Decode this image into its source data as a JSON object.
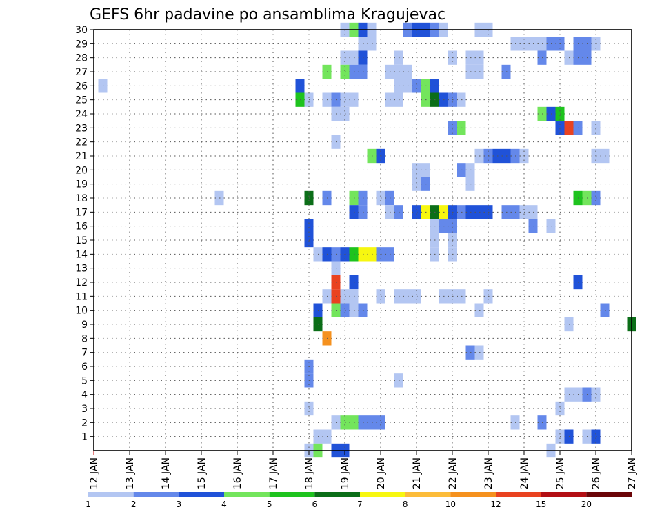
{
  "chart_data": {
    "type": "heatmap",
    "title": "GEFS 6hr padavine po ansamblima Kragujevac",
    "xlabel": "",
    "ylabel": "",
    "x_ticks": [
      "12 JAN",
      "13 JAN",
      "14 JAN",
      "15 JAN",
      "16 JAN",
      "17 JAN",
      "18 JAN",
      "19 JAN",
      "20 JAN",
      "21 JAN",
      "22 JAN",
      "23 JAN",
      "24 JAN",
      "25 JAN",
      "26 JAN",
      "27 JAN"
    ],
    "y_ticks": [
      1,
      2,
      3,
      4,
      5,
      6,
      7,
      8,
      9,
      10,
      11,
      12,
      13,
      14,
      15,
      16,
      17,
      18,
      19,
      20,
      21,
      22,
      23,
      24,
      25,
      26,
      27,
      28,
      29,
      30
    ],
    "x_range_days": [
      12,
      27
    ],
    "y_range": [
      0,
      30
    ],
    "grid": true,
    "colorbar": {
      "labels": [
        "1",
        "2",
        "3",
        "4",
        "5",
        "6",
        "7",
        "8",
        "10",
        "12",
        "15",
        "20"
      ],
      "colors": [
        "#b3c6f2",
        "#6488ea",
        "#2052d8",
        "#73e55c",
        "#1ec31e",
        "#0b6e18",
        "#f7f710",
        "#fcbc3a",
        "#f5911e",
        "#e94220",
        "#b30f14",
        "#6b0508"
      ]
    },
    "cells": [
      [
        12.25,
        26,
        "#b3c6f2"
      ],
      [
        15.5,
        18,
        "#b3c6f2"
      ],
      [
        17.75,
        25,
        "#1ec31e"
      ],
      [
        17.75,
        26,
        "#2052d8"
      ],
      [
        18,
        25,
        "#b3c6f2"
      ],
      [
        18,
        18,
        "#0b6e18"
      ],
      [
        18,
        16,
        "#2052d8"
      ],
      [
        18,
        15,
        "#2052d8"
      ],
      [
        18,
        3,
        "#b3c6f2"
      ],
      [
        18,
        5,
        "#6488ea"
      ],
      [
        18,
        6,
        "#6488ea"
      ],
      [
        18,
        0,
        "#b3c6f2"
      ],
      [
        18.25,
        14,
        "#b3c6f2"
      ],
      [
        18.25,
        10,
        "#2052d8"
      ],
      [
        18.25,
        9,
        "#0b6e18"
      ],
      [
        18.25,
        1,
        "#b3c6f2"
      ],
      [
        18.25,
        0,
        "#73e55c"
      ],
      [
        18.5,
        27,
        "#73e55c"
      ],
      [
        18.5,
        25,
        "#b3c6f2"
      ],
      [
        18.5,
        18,
        "#6488ea"
      ],
      [
        18.5,
        14,
        "#2052d8"
      ],
      [
        18.5,
        11,
        "#b3c6f2"
      ],
      [
        18.5,
        8,
        "#f5911e"
      ],
      [
        18.5,
        1,
        "#b3c6f2"
      ],
      [
        18.75,
        25,
        "#6488ea"
      ],
      [
        18.75,
        24,
        "#b3c6f2"
      ],
      [
        18.75,
        22,
        "#b3c6f2"
      ],
      [
        18.75,
        14,
        "#6488ea"
      ],
      [
        18.75,
        13,
        "#b3c6f2"
      ],
      [
        18.75,
        12,
        "#e94220"
      ],
      [
        18.75,
        11,
        "#e94220"
      ],
      [
        18.75,
        10,
        "#73e55c"
      ],
      [
        18.75,
        2,
        "#b3c6f2"
      ],
      [
        18.75,
        0,
        "#2052d8"
      ],
      [
        19,
        30,
        "#b3c6f2"
      ],
      [
        19,
        28,
        "#b3c6f2"
      ],
      [
        19,
        27,
        "#73e55c"
      ],
      [
        19,
        25,
        "#b3c6f2"
      ],
      [
        19,
        24,
        "#b3c6f2"
      ],
      [
        19,
        14,
        "#2052d8"
      ],
      [
        19,
        11,
        "#b3c6f2"
      ],
      [
        19,
        10,
        "#6488ea"
      ],
      [
        19,
        2,
        "#73e55c"
      ],
      [
        19,
        0,
        "#2052d8"
      ],
      [
        19.25,
        30,
        "#73e55c"
      ],
      [
        19.25,
        28,
        "#b3c6f2"
      ],
      [
        19.25,
        27,
        "#6488ea"
      ],
      [
        19.25,
        25,
        "#b3c6f2"
      ],
      [
        19.25,
        18,
        "#73e55c"
      ],
      [
        19.25,
        17,
        "#2052d8"
      ],
      [
        19.25,
        14,
        "#1ec31e"
      ],
      [
        19.25,
        12,
        "#2052d8"
      ],
      [
        19.25,
        11,
        "#b3c6f2"
      ],
      [
        19.25,
        10,
        "#b3c6f2"
      ],
      [
        19.25,
        2,
        "#73e55c"
      ],
      [
        19.5,
        30,
        "#2052d8"
      ],
      [
        19.5,
        29,
        "#b3c6f2"
      ],
      [
        19.5,
        28,
        "#2052d8"
      ],
      [
        19.5,
        27,
        "#6488ea"
      ],
      [
        19.5,
        18,
        "#6488ea"
      ],
      [
        19.5,
        17,
        "#6488ea"
      ],
      [
        19.5,
        14,
        "#f7f710"
      ],
      [
        19.5,
        10,
        "#6488ea"
      ],
      [
        19.5,
        2,
        "#6488ea"
      ],
      [
        19.75,
        30,
        "#b3c6f2"
      ],
      [
        19.75,
        29,
        "#b3c6f2"
      ],
      [
        19.75,
        21,
        "#73e55c"
      ],
      [
        19.75,
        14,
        "#f7f710"
      ],
      [
        19.75,
        2,
        "#6488ea"
      ],
      [
        20,
        21,
        "#2052d8"
      ],
      [
        20,
        18,
        "#b3c6f2"
      ],
      [
        20,
        14,
        "#6488ea"
      ],
      [
        20,
        11,
        "#b3c6f2"
      ],
      [
        20,
        2,
        "#6488ea"
      ],
      [
        20.25,
        27,
        "#b3c6f2"
      ],
      [
        20.25,
        25,
        "#b3c6f2"
      ],
      [
        20.25,
        18,
        "#6488ea"
      ],
      [
        20.25,
        17,
        "#b3c6f2"
      ],
      [
        20.25,
        14,
        "#6488ea"
      ],
      [
        20.5,
        28,
        "#b3c6f2"
      ],
      [
        20.5,
        27,
        "#b3c6f2"
      ],
      [
        20.5,
        26,
        "#b3c6f2"
      ],
      [
        20.5,
        25,
        "#b3c6f2"
      ],
      [
        20.5,
        17,
        "#6488ea"
      ],
      [
        20.5,
        11,
        "#b3c6f2"
      ],
      [
        20.5,
        5,
        "#b3c6f2"
      ],
      [
        20.75,
        27,
        "#b3c6f2"
      ],
      [
        20.75,
        26,
        "#b3c6f2"
      ],
      [
        20.75,
        11,
        "#b3c6f2"
      ],
      [
        20.75,
        30,
        "#6488ea"
      ],
      [
        21,
        26,
        "#6488ea"
      ],
      [
        21,
        20,
        "#b3c6f2"
      ],
      [
        21,
        19,
        "#b3c6f2"
      ],
      [
        21,
        17,
        "#2052d8"
      ],
      [
        21,
        11,
        "#b3c6f2"
      ],
      [
        21,
        30,
        "#2052d8"
      ],
      [
        21.25,
        30,
        "#2052d8"
      ],
      [
        21.25,
        26,
        "#73e55c"
      ],
      [
        21.25,
        25,
        "#73e55c"
      ],
      [
        21.25,
        20,
        "#b3c6f2"
      ],
      [
        21.25,
        19,
        "#6488ea"
      ],
      [
        21.25,
        17,
        "#f7f710"
      ],
      [
        21.5,
        30,
        "#6488ea"
      ],
      [
        21.5,
        26,
        "#2052d8"
      ],
      [
        21.5,
        25,
        "#0b6e18"
      ],
      [
        21.5,
        17,
        "#0b6e18"
      ],
      [
        21.5,
        16,
        "#b3c6f2"
      ],
      [
        21.5,
        15,
        "#b3c6f2"
      ],
      [
        21.5,
        14,
        "#b3c6f2"
      ],
      [
        21.75,
        30,
        "#b3c6f2"
      ],
      [
        21.75,
        25,
        "#2052d8"
      ],
      [
        21.75,
        17,
        "#f7f710"
      ],
      [
        21.75,
        16,
        "#6488ea"
      ],
      [
        21.75,
        11,
        "#b3c6f2"
      ],
      [
        22,
        28,
        "#b3c6f2"
      ],
      [
        22,
        25,
        "#6488ea"
      ],
      [
        22,
        23,
        "#6488ea"
      ],
      [
        22,
        17,
        "#2052d8"
      ],
      [
        22,
        16,
        "#6488ea"
      ],
      [
        22,
        15,
        "#b3c6f2"
      ],
      [
        22,
        14,
        "#b3c6f2"
      ],
      [
        22,
        11,
        "#b3c6f2"
      ],
      [
        22.25,
        25,
        "#b3c6f2"
      ],
      [
        22.25,
        23,
        "#73e55c"
      ],
      [
        22.25,
        20,
        "#6488ea"
      ],
      [
        22.25,
        17,
        "#6488ea"
      ],
      [
        22.25,
        11,
        "#b3c6f2"
      ],
      [
        22.5,
        28,
        "#b3c6f2"
      ],
      [
        22.5,
        27,
        "#b3c6f2"
      ],
      [
        22.5,
        20,
        "#b3c6f2"
      ],
      [
        22.5,
        19,
        "#b3c6f2"
      ],
      [
        22.5,
        17,
        "#2052d8"
      ],
      [
        22.5,
        7,
        "#6488ea"
      ],
      [
        22.75,
        30,
        "#b3c6f2"
      ],
      [
        22.75,
        28,
        "#b3c6f2"
      ],
      [
        22.75,
        27,
        "#b3c6f2"
      ],
      [
        22.75,
        21,
        "#b3c6f2"
      ],
      [
        22.75,
        17,
        "#2052d8"
      ],
      [
        22.75,
        10,
        "#b3c6f2"
      ],
      [
        22.75,
        7,
        "#b3c6f2"
      ],
      [
        23,
        30,
        "#b3c6f2"
      ],
      [
        23,
        21,
        "#6488ea"
      ],
      [
        23,
        17,
        "#2052d8"
      ],
      [
        23,
        11,
        "#b3c6f2"
      ],
      [
        23.25,
        21,
        "#2052d8"
      ],
      [
        23.5,
        27,
        "#6488ea"
      ],
      [
        23.5,
        21,
        "#2052d8"
      ],
      [
        23.5,
        17,
        "#6488ea"
      ],
      [
        23.75,
        29,
        "#b3c6f2"
      ],
      [
        23.75,
        21,
        "#6488ea"
      ],
      [
        23.75,
        17,
        "#6488ea"
      ],
      [
        23.75,
        2,
        "#b3c6f2"
      ],
      [
        24,
        29,
        "#b3c6f2"
      ],
      [
        24,
        21,
        "#b3c6f2"
      ],
      [
        24,
        17,
        "#b3c6f2"
      ],
      [
        24.25,
        29,
        "#b3c6f2"
      ],
      [
        24.25,
        17,
        "#b3c6f2"
      ],
      [
        24.25,
        16,
        "#6488ea"
      ],
      [
        24.5,
        29,
        "#b3c6f2"
      ],
      [
        24.5,
        28,
        "#6488ea"
      ],
      [
        24.5,
        24,
        "#73e55c"
      ],
      [
        24.5,
        2,
        "#6488ea"
      ],
      [
        24.75,
        29,
        "#6488ea"
      ],
      [
        24.75,
        24,
        "#2052d8"
      ],
      [
        24.75,
        16,
        "#b3c6f2"
      ],
      [
        24.75,
        0,
        "#b3c6f2"
      ],
      [
        25,
        29,
        "#6488ea"
      ],
      [
        25,
        24,
        "#1ec31e"
      ],
      [
        25,
        23,
        "#2052d8"
      ],
      [
        25,
        3,
        "#b3c6f2"
      ],
      [
        25,
        1,
        "#b3c6f2"
      ],
      [
        25.25,
        28,
        "#b3c6f2"
      ],
      [
        25.25,
        23,
        "#e94220"
      ],
      [
        25.25,
        9,
        "#b3c6f2"
      ],
      [
        25.25,
        4,
        "#b3c6f2"
      ],
      [
        25.25,
        1,
        "#2052d8"
      ],
      [
        25.5,
        29,
        "#6488ea"
      ],
      [
        25.5,
        28,
        "#6488ea"
      ],
      [
        25.5,
        23,
        "#6488ea"
      ],
      [
        25.5,
        18,
        "#1ec31e"
      ],
      [
        25.5,
        12,
        "#2052d8"
      ],
      [
        25.5,
        4,
        "#b3c6f2"
      ],
      [
        25.75,
        29,
        "#6488ea"
      ],
      [
        25.75,
        28,
        "#6488ea"
      ],
      [
        25.75,
        18,
        "#73e55c"
      ],
      [
        25.75,
        4,
        "#6488ea"
      ],
      [
        25.75,
        1,
        "#b3c6f2"
      ],
      [
        26,
        29,
        "#b3c6f2"
      ],
      [
        26,
        23,
        "#b3c6f2"
      ],
      [
        26,
        21,
        "#b3c6f2"
      ],
      [
        26,
        18,
        "#6488ea"
      ],
      [
        26,
        4,
        "#b3c6f2"
      ],
      [
        26,
        1,
        "#2052d8"
      ],
      [
        26.25,
        21,
        "#b3c6f2"
      ],
      [
        26.25,
        10,
        "#6488ea"
      ],
      [
        27,
        9,
        "#0b6e18"
      ]
    ]
  }
}
